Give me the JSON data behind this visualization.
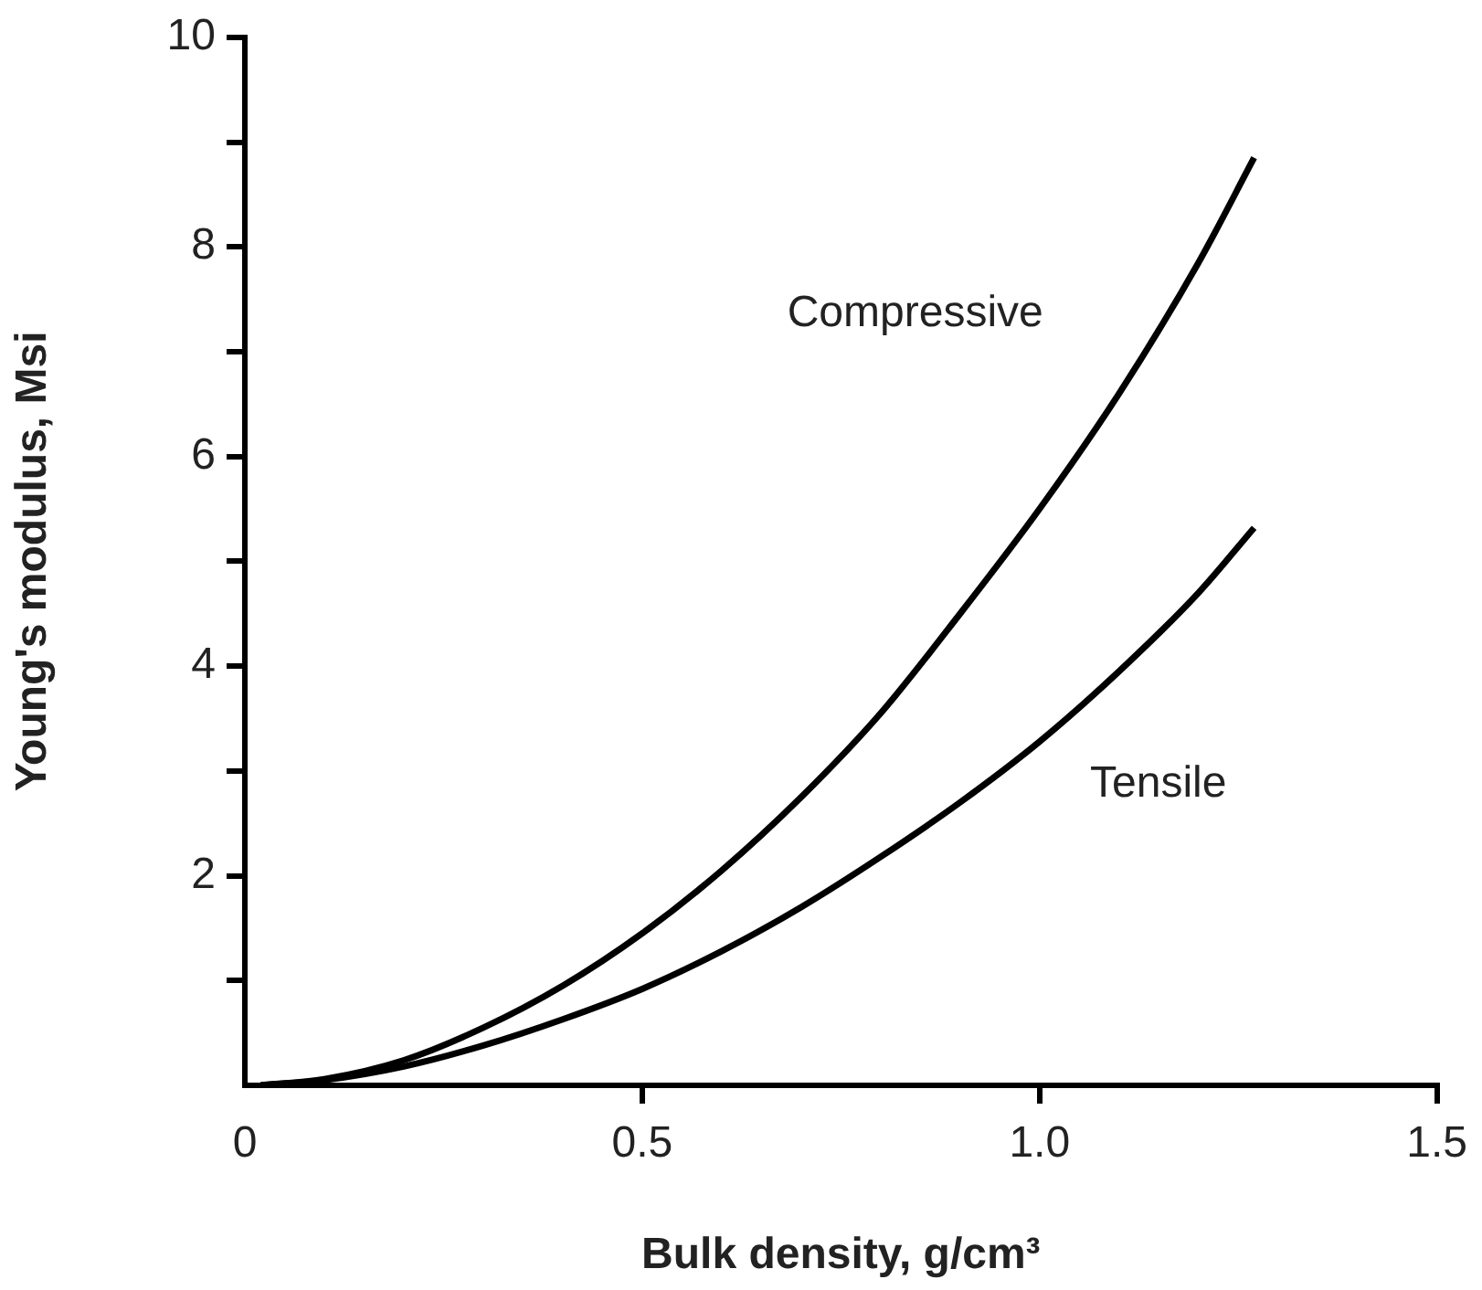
{
  "chart_data": {
    "type": "line",
    "xlabel": "Bulk density, g/cm³",
    "ylabel": "Young's modulus, Msi",
    "x": [
      0.02,
      0.1,
      0.2,
      0.3,
      0.4,
      0.5,
      0.6,
      0.7,
      0.8,
      0.9,
      1.0,
      1.1,
      1.2,
      1.27
    ],
    "series": [
      {
        "name": "Compressive",
        "color": "#000000",
        "values": [
          0,
          0.06,
          0.24,
          0.55,
          0.95,
          1.45,
          2.05,
          2.75,
          3.55,
          4.5,
          5.5,
          6.6,
          7.85,
          8.85
        ]
      },
      {
        "name": "Tensile",
        "color": "#000000",
        "values": [
          0,
          0.05,
          0.18,
          0.38,
          0.63,
          0.92,
          1.28,
          1.7,
          2.18,
          2.7,
          3.28,
          3.95,
          4.7,
          5.32
        ]
      }
    ],
    "xlim": [
      0,
      1.5
    ],
    "xticks": [
      0,
      {
        "value": 0.5,
        "label": "0.5"
      },
      {
        "value": 1,
        "label": "1.0"
      },
      1.5
    ],
    "ylim": [
      0,
      10
    ],
    "yticks": [
      {
        "value": 0,
        "label": null
      },
      {
        "value": 1,
        "label": null
      },
      2,
      {
        "value": 3,
        "label": null
      },
      4,
      {
        "value": 5,
        "label": null
      },
      6,
      {
        "value": 7,
        "label": null
      },
      8,
      {
        "value": 9,
        "label": null
      },
      10
    ],
    "grid": false,
    "legend": false,
    "line_style": "solid"
  }
}
